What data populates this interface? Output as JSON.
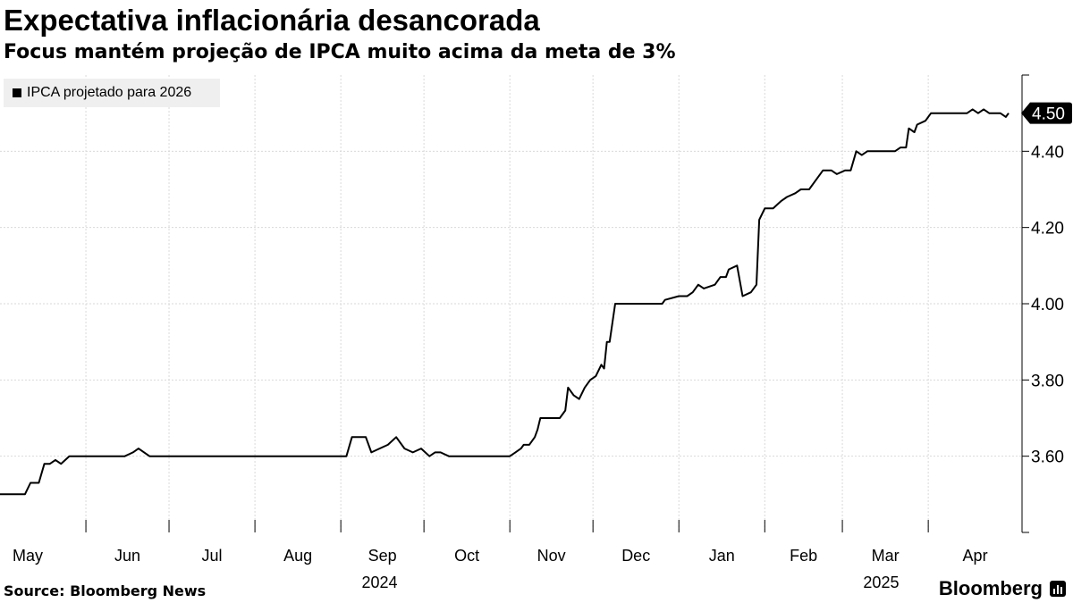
{
  "header": {
    "title": "Expectativa inflacionária desancorada",
    "subtitle": "Focus mantém projeção de IPCA muito acima da meta de 3%"
  },
  "footer": {
    "source": "Source: Bloomberg News",
    "brand": "Bloomberg"
  },
  "colors": {
    "line": "#000000",
    "grid": "#d9d9d9",
    "legend_bg": "#efefef"
  },
  "chart_data": {
    "type": "line",
    "title": "Expectativa inflacionária desancorada",
    "subtitle": "Focus mantém projeção de IPCA muito acima da meta de 3%",
    "legend_placement": "top-left",
    "grid": true,
    "ylim": [
      3.4,
      4.6
    ],
    "y_ticks": [
      "3.60",
      "3.80",
      "4.00",
      "4.20",
      "4.40"
    ],
    "x_range": [
      "2024-05-01",
      "2025-04-30"
    ],
    "x_ticks": [
      {
        "label": "May",
        "date": "2024-05-01"
      },
      {
        "label": "Jun",
        "date": "2024-06-01"
      },
      {
        "label": "Jul",
        "date": "2024-07-01"
      },
      {
        "label": "Aug",
        "date": "2024-08-01"
      },
      {
        "label": "Sep",
        "date": "2024-09-01"
      },
      {
        "label": "Oct",
        "date": "2024-10-01"
      },
      {
        "label": "Nov",
        "date": "2024-11-01"
      },
      {
        "label": "Dec",
        "date": "2024-12-01"
      },
      {
        "label": "Jan",
        "date": "2025-01-01"
      },
      {
        "label": "Feb",
        "date": "2025-02-01"
      },
      {
        "label": "Mar",
        "date": "2025-03-01"
      },
      {
        "label": "Apr",
        "date": "2025-04-01"
      }
    ],
    "year_labels": [
      {
        "label": "2024",
        "date": "2024-09-15"
      },
      {
        "label": "2025",
        "date": "2025-03-15"
      }
    ],
    "last_value_label": "4.50",
    "series": [
      {
        "name": "IPCA projetado para 2026",
        "points": [
          [
            "2024-05-01",
            3.5
          ],
          [
            "2024-05-10",
            3.5
          ],
          [
            "2024-05-12",
            3.53
          ],
          [
            "2024-05-15",
            3.53
          ],
          [
            "2024-05-17",
            3.58
          ],
          [
            "2024-05-19",
            3.58
          ],
          [
            "2024-05-21",
            3.59
          ],
          [
            "2024-05-23",
            3.58
          ],
          [
            "2024-05-26",
            3.6
          ],
          [
            "2024-06-15",
            3.6
          ],
          [
            "2024-06-18",
            3.61
          ],
          [
            "2024-06-20",
            3.62
          ],
          [
            "2024-06-24",
            3.6
          ],
          [
            "2024-09-03",
            3.6
          ],
          [
            "2024-09-05",
            3.65
          ],
          [
            "2024-09-10",
            3.65
          ],
          [
            "2024-09-12",
            3.61
          ],
          [
            "2024-09-15",
            3.62
          ],
          [
            "2024-09-18",
            3.63
          ],
          [
            "2024-09-21",
            3.65
          ],
          [
            "2024-09-24",
            3.62
          ],
          [
            "2024-09-27",
            3.61
          ],
          [
            "2024-09-30",
            3.62
          ],
          [
            "2024-10-03",
            3.6
          ],
          [
            "2024-10-05",
            3.61
          ],
          [
            "2024-10-07",
            3.61
          ],
          [
            "2024-10-10",
            3.6
          ],
          [
            "2024-11-01",
            3.6
          ],
          [
            "2024-11-03",
            3.61
          ],
          [
            "2024-11-05",
            3.62
          ],
          [
            "2024-11-06",
            3.63
          ],
          [
            "2024-11-08",
            3.63
          ],
          [
            "2024-11-10",
            3.65
          ],
          [
            "2024-11-11",
            3.67
          ],
          [
            "2024-11-12",
            3.7
          ],
          [
            "2024-11-19",
            3.7
          ],
          [
            "2024-11-21",
            3.72
          ],
          [
            "2024-11-22",
            3.78
          ],
          [
            "2024-11-24",
            3.76
          ],
          [
            "2024-11-26",
            3.75
          ],
          [
            "2024-11-28",
            3.78
          ],
          [
            "2024-11-30",
            3.8
          ],
          [
            "2024-12-02",
            3.81
          ],
          [
            "2024-12-04",
            3.84
          ],
          [
            "2024-12-05",
            3.83
          ],
          [
            "2024-12-06",
            3.9
          ],
          [
            "2024-12-07",
            3.9
          ],
          [
            "2024-12-09",
            4.0
          ],
          [
            "2024-12-26",
            4.0
          ],
          [
            "2024-12-27",
            4.01
          ],
          [
            "2025-01-01",
            4.02
          ],
          [
            "2025-01-04",
            4.02
          ],
          [
            "2025-01-06",
            4.03
          ],
          [
            "2025-01-08",
            4.05
          ],
          [
            "2025-01-10",
            4.04
          ],
          [
            "2025-01-14",
            4.05
          ],
          [
            "2025-01-16",
            4.07
          ],
          [
            "2025-01-18",
            4.07
          ],
          [
            "2025-01-19",
            4.09
          ],
          [
            "2025-01-22",
            4.1
          ],
          [
            "2025-01-24",
            4.02
          ],
          [
            "2025-01-27",
            4.03
          ],
          [
            "2025-01-29",
            4.05
          ],
          [
            "2025-01-30",
            4.22
          ],
          [
            "2025-02-01",
            4.25
          ],
          [
            "2025-02-04",
            4.25
          ],
          [
            "2025-02-07",
            4.27
          ],
          [
            "2025-02-09",
            4.28
          ],
          [
            "2025-02-12",
            4.29
          ],
          [
            "2025-02-14",
            4.3
          ],
          [
            "2025-02-17",
            4.3
          ],
          [
            "2025-02-20",
            4.33
          ],
          [
            "2025-02-22",
            4.35
          ],
          [
            "2025-02-25",
            4.35
          ],
          [
            "2025-02-27",
            4.34
          ],
          [
            "2025-03-02",
            4.35
          ],
          [
            "2025-03-04",
            4.35
          ],
          [
            "2025-03-06",
            4.4
          ],
          [
            "2025-03-08",
            4.39
          ],
          [
            "2025-03-10",
            4.4
          ],
          [
            "2025-03-20",
            4.4
          ],
          [
            "2025-03-22",
            4.41
          ],
          [
            "2025-03-24",
            4.41
          ],
          [
            "2025-03-25",
            4.46
          ],
          [
            "2025-03-27",
            4.45
          ],
          [
            "2025-03-28",
            4.47
          ],
          [
            "2025-03-31",
            4.48
          ],
          [
            "2025-04-02",
            4.5
          ],
          [
            "2025-04-15",
            4.5
          ],
          [
            "2025-04-17",
            4.51
          ],
          [
            "2025-04-19",
            4.5
          ],
          [
            "2025-04-21",
            4.51
          ],
          [
            "2025-04-23",
            4.5
          ],
          [
            "2025-04-25",
            4.5
          ],
          [
            "2025-04-27",
            4.5
          ],
          [
            "2025-04-29",
            4.49
          ],
          [
            "2025-04-30",
            4.5
          ]
        ]
      }
    ]
  }
}
